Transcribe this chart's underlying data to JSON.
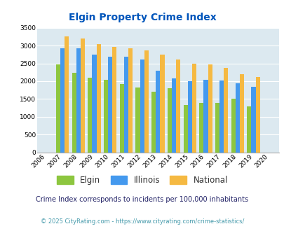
{
  "title": "Elgin Property Crime Index",
  "years": [
    2006,
    2007,
    2008,
    2009,
    2010,
    2011,
    2012,
    2013,
    2014,
    2015,
    2016,
    2017,
    2018,
    2019,
    2020
  ],
  "elgin": [
    0,
    2480,
    2230,
    2090,
    2040,
    1920,
    1820,
    1700,
    1800,
    1330,
    1400,
    1390,
    1510,
    1290,
    0
  ],
  "illinois": [
    0,
    2920,
    2930,
    2750,
    2680,
    2680,
    2600,
    2290,
    2080,
    2000,
    2040,
    2020,
    1950,
    1840,
    0
  ],
  "national": [
    0,
    3260,
    3200,
    3050,
    2960,
    2920,
    2870,
    2740,
    2600,
    2500,
    2480,
    2380,
    2200,
    2120,
    0
  ],
  "elgin_color": "#8dc63f",
  "illinois_color": "#4499ee",
  "national_color": "#f5b942",
  "background_color": "#dce9f0",
  "title_color": "#0055bb",
  "ylabel_max": 3500,
  "ylabel_step": 500,
  "subtitle": "Crime Index corresponds to incidents per 100,000 inhabitants",
  "footer": "© 2025 CityRating.com - https://www.cityrating.com/crime-statistics/",
  "subtitle_color": "#222266",
  "footer_color": "#4499aa"
}
